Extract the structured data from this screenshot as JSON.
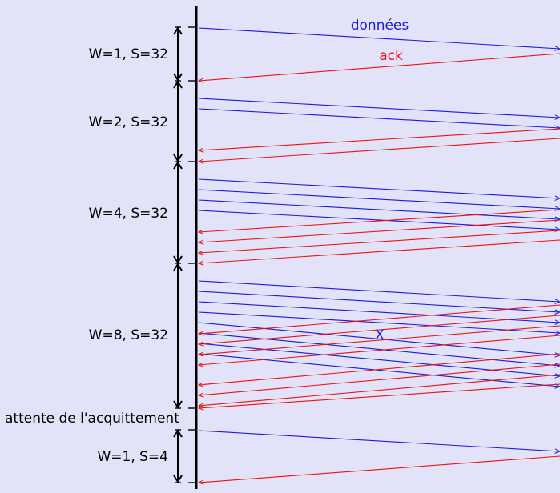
{
  "colors": {
    "background": "#e2e3f8",
    "data": "#1a1adf",
    "ack": "#ee1111",
    "axis": "#000000"
  },
  "labels": {
    "data_arrows": "données",
    "ack_arrows": "ack",
    "lost_marker": "X",
    "wait_label": "attente de l'acquittement"
  },
  "phases": [
    {
      "label": "W=1, S=32",
      "data_count": 1,
      "ack_count": 1
    },
    {
      "label": "W=2, S=32",
      "data_count": 2,
      "ack_count": 2
    },
    {
      "label": "W=4, S=32",
      "data_count": 4,
      "ack_count": 4
    },
    {
      "label": "W=8, S=32",
      "data_count": 8,
      "ack_count": 8,
      "lost_data_index": 3
    },
    {
      "label": "W=1, S=4",
      "data_count": 1,
      "ack_count": 1
    }
  ]
}
